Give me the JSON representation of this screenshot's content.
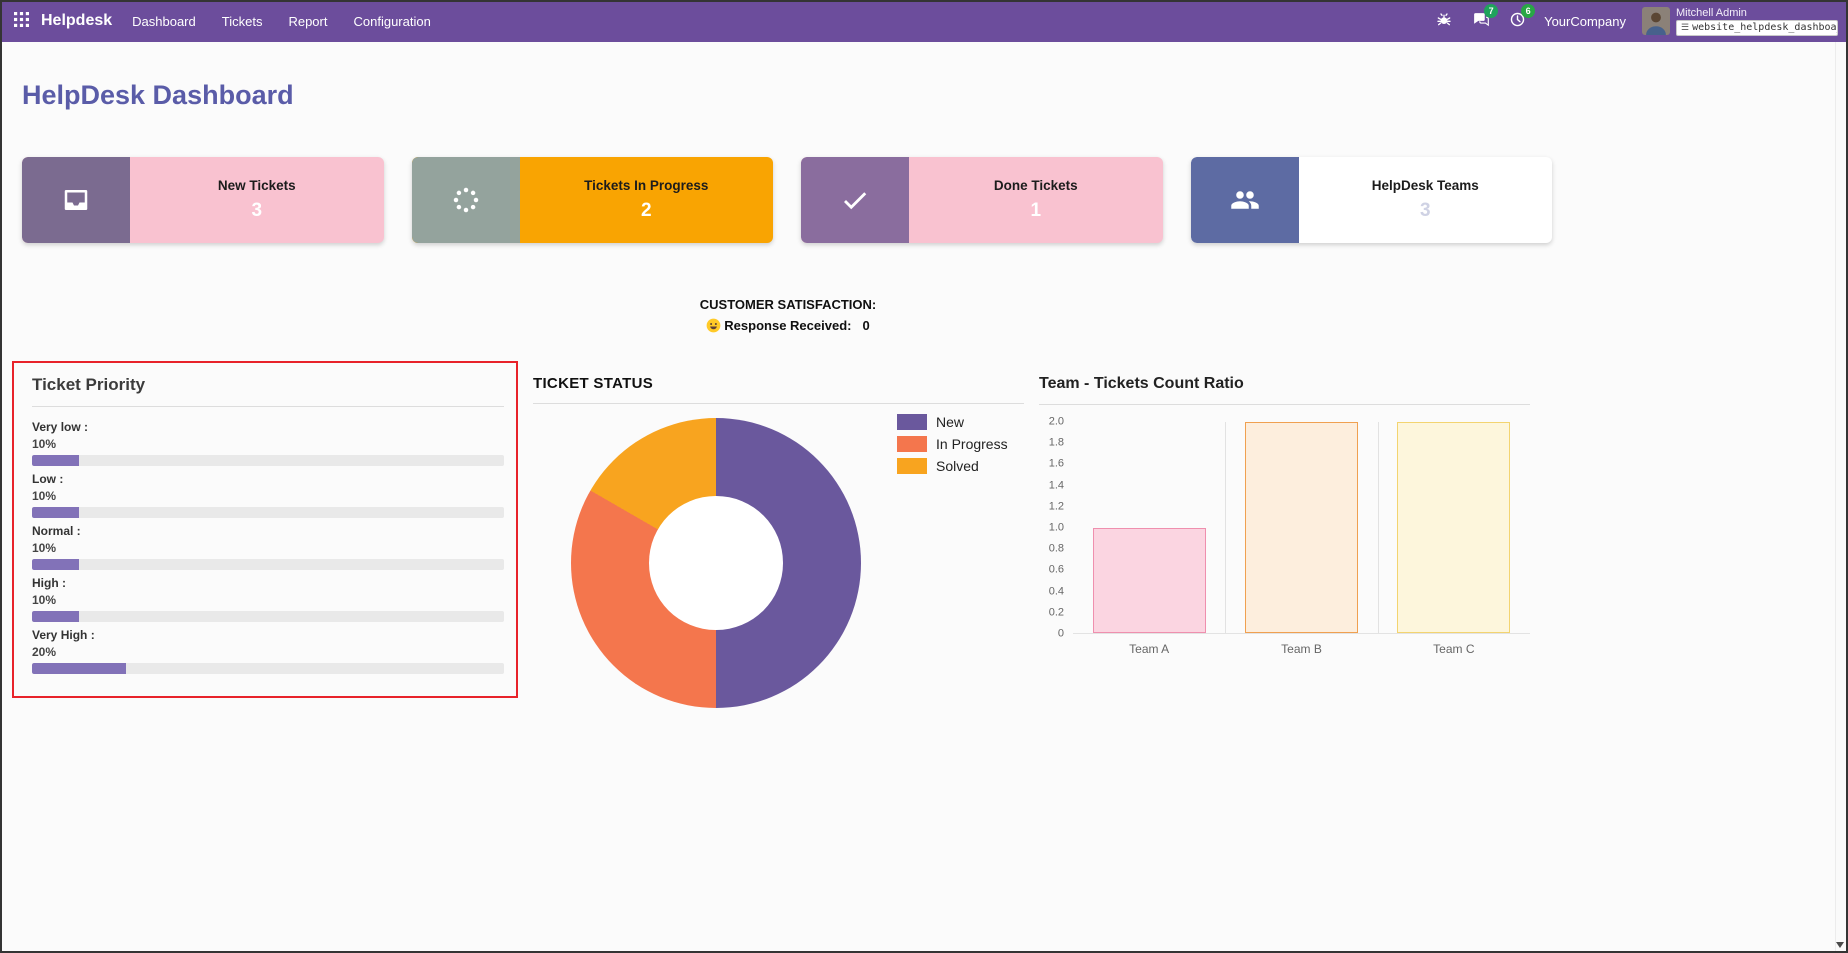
{
  "colors": {
    "navbar_bg": "#6c4d9c",
    "page_title": "#5a5ca8",
    "highlight_border": "#e8232a",
    "message_badge_color": "#1fa35c",
    "activity_badge_color": "#28a745"
  },
  "navbar": {
    "app_name": "Helpdesk",
    "menu_items": [
      "Dashboard",
      "Tickets",
      "Report",
      "Configuration"
    ],
    "message_badge": "7",
    "activity_badge": "6",
    "company": "YourCompany",
    "user": "Mitchell Admin",
    "debug_field": "website_helpdesk_dashboa_",
    "icons": [
      "apps-grid-icon",
      "bug-icon",
      "chat-icon",
      "clock-icon",
      "avatar"
    ]
  },
  "page": {
    "title": "HelpDesk Dashboard"
  },
  "kpis": [
    {
      "label": "New Tickets",
      "value": "3",
      "icon": "inbox-icon",
      "body_color": "#f9c2d0",
      "icon_bg": "#7b6b90",
      "value_color": "#ffffff"
    },
    {
      "label": "Tickets In Progress",
      "value": "2",
      "icon": "spinner-icon",
      "body_color": "#f9a402",
      "icon_bg": "#94a39d",
      "value_color": "#ffffff"
    },
    {
      "label": "Done Tickets",
      "value": "1",
      "icon": "check-icon",
      "body_color": "#f9c2d0",
      "icon_bg": "#8a6d9e",
      "value_color": "#ffffff"
    },
    {
      "label": "HelpDesk Teams",
      "value": "3",
      "icon": "users-icon",
      "body_color": "#ffffff",
      "icon_bg": "#5d6ba3",
      "value_color": "#cfd2e4"
    }
  ],
  "satisfaction": {
    "title": "CUSTOMER SATISFACTION:",
    "emoji": "😃",
    "emoji_icon": "smiley-icon",
    "label": "Response Received:",
    "value": "0"
  },
  "priority_panel": {
    "title": "Ticket Priority",
    "bar_color": "#8272b8",
    "track_color": "#e9e9e9",
    "items": [
      {
        "label": "Very low :",
        "percent": 10
      },
      {
        "label": "Low :",
        "percent": 10
      },
      {
        "label": "Normal :",
        "percent": 10
      },
      {
        "label": "High :",
        "percent": 10
      },
      {
        "label": "Very High :",
        "percent": 20
      }
    ]
  },
  "chart_data": [
    {
      "type": "pie",
      "donut": true,
      "title": "TICKET STATUS",
      "labels": [
        "New",
        "In Progress",
        "Solved"
      ],
      "values": [
        3,
        2,
        1
      ],
      "percents": [
        50,
        33.3,
        16.7
      ],
      "colors": [
        "#6a589d",
        "#f4764d",
        "#f8a41f"
      ],
      "legend_position": "right"
    },
    {
      "type": "bar",
      "title": "Team - Tickets Count Ratio",
      "categories": [
        "Team A",
        "Team B",
        "Team C"
      ],
      "values": [
        1,
        2,
        2
      ],
      "bar_fill": [
        "#fbd5e1",
        "#fdeedd",
        "#fdf6dc"
      ],
      "bar_border": [
        "#ef8fae",
        "#f0a050",
        "#f3d470"
      ],
      "ylim": [
        0,
        2
      ],
      "ytick_step": 0.2,
      "grid": true,
      "xlabel": "",
      "ylabel": ""
    }
  ]
}
